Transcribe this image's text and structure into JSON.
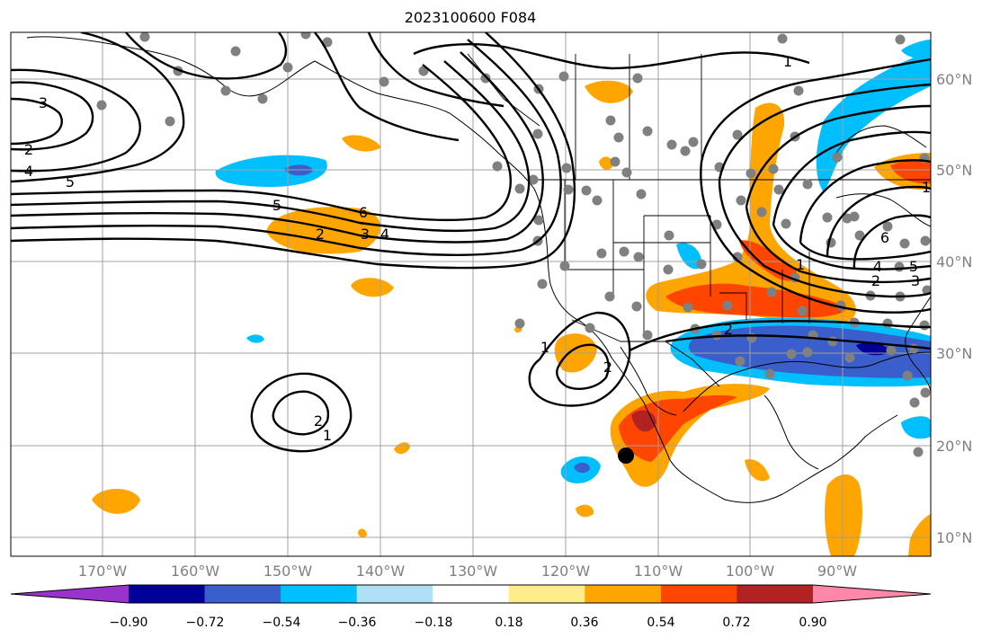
{
  "title": "2023100600 F084",
  "map": {
    "lon_labels": [
      "170°W",
      "160°W",
      "150°W",
      "140°W",
      "130°W",
      "120°W",
      "110°W",
      "100°W",
      "90°W"
    ],
    "lat_labels": [
      "60°N",
      "50°N",
      "40°N",
      "30°N",
      "20°N",
      "10°N"
    ],
    "contour_labels": [
      "3",
      "2",
      "4",
      "5",
      "5",
      "6",
      "2",
      "3",
      "4",
      "1",
      "2",
      "1",
      "1",
      "2",
      "1",
      "6",
      "4",
      "5",
      "3",
      "2",
      "2",
      "1"
    ]
  },
  "colorbar": {
    "tick_labels": [
      "−0.90",
      "−0.72",
      "−0.54",
      "−0.36",
      "−0.18",
      "0.18",
      "0.36",
      "0.54",
      "0.72",
      "0.90"
    ],
    "colors": [
      "#9933cc",
      "#000099",
      "#3a5fcd",
      "#00bfff",
      "#b0e0f5",
      "#ffffff",
      "#ffec8b",
      "#ffa500",
      "#ff4500",
      "#b22222",
      "#ff88aa"
    ]
  },
  "colors": {
    "negative_fill_light": "#00bfff",
    "negative_fill_dark": "#3a5fcd",
    "positive_fill_light": "#ffa500",
    "positive_fill_mid": "#ff4500",
    "positive_fill_dark": "#b22222",
    "station_dot": "#808080",
    "grid": "#a0a0a0"
  }
}
